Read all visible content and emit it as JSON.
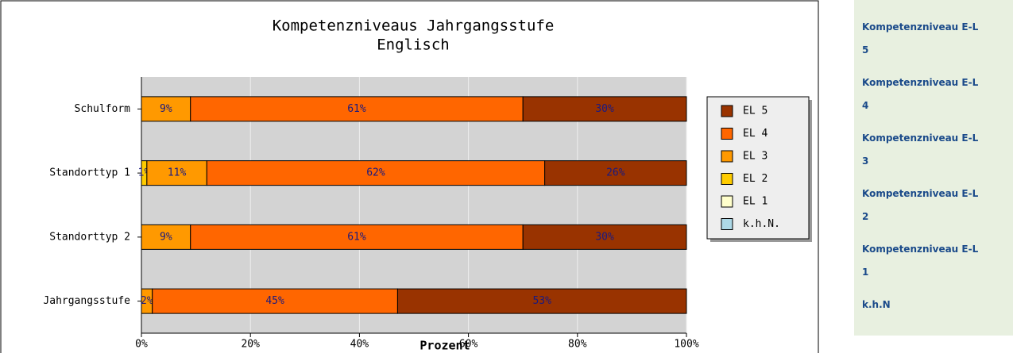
{
  "chart_data": {
    "type": "stacked_barh",
    "title": [
      "Kompetenzniveaus  Jahrgangsstufe",
      "Englisch"
    ],
    "xlabel": "Prozent",
    "categories": [
      "Schulform",
      "Standorttyp 1",
      "Standorttyp 2",
      "Jahrgangsstufe"
    ],
    "series": [
      {
        "name": "EL 5",
        "color": "#993300",
        "values": [
          30,
          26,
          30,
          53
        ],
        "value_labels": [
          "30%",
          "26%",
          "30%",
          "53%"
        ]
      },
      {
        "name": "EL 4",
        "color": "#ff6600",
        "values": [
          61,
          62,
          61,
          45
        ],
        "value_labels": [
          "61%",
          "62%",
          "61%",
          "45%"
        ]
      },
      {
        "name": "EL 3",
        "color": "#ff9900",
        "values": [
          9,
          11,
          9,
          2
        ],
        "value_labels": [
          "9%",
          "11%",
          "9%",
          "2%"
        ]
      },
      {
        "name": "EL 2",
        "color": "#ffcc00",
        "values": [
          0,
          1,
          0,
          0
        ],
        "value_labels": [
          null,
          "1%",
          null,
          null
        ]
      },
      {
        "name": "EL 1",
        "color": "#ffffcc",
        "values": [
          0,
          0,
          0,
          0
        ],
        "value_labels": [
          null,
          null,
          null,
          null
        ]
      },
      {
        "name": "k.h.N.",
        "color": "#add8e6",
        "values": [
          0,
          0,
          0,
          0
        ],
        "value_labels": [
          null,
          null,
          null,
          null
        ]
      }
    ],
    "xlim": [
      0,
      100
    ],
    "xticks": [
      {
        "value": 0,
        "label": "0%"
      },
      {
        "value": 20,
        "label": "20%"
      },
      {
        "value": 40,
        "label": "40%"
      },
      {
        "value": 60,
        "label": "60%"
      },
      {
        "value": 80,
        "label": "80%"
      },
      {
        "value": 100,
        "label": "100%"
      }
    ],
    "grid": true,
    "legend": "right"
  },
  "sidebar": {
    "links": [
      {
        "text": "Kompetenzniveau E-L",
        "level": "5"
      },
      {
        "text": "Kompetenzniveau E-L",
        "level": "4"
      },
      {
        "text": "Kompetenzniveau E-L",
        "level": "3"
      },
      {
        "text": "Kompetenzniveau E-L",
        "level": "2"
      },
      {
        "text": "Kompetenzniveau E-L",
        "level": "1"
      },
      {
        "text": "k.h.N"
      }
    ]
  }
}
